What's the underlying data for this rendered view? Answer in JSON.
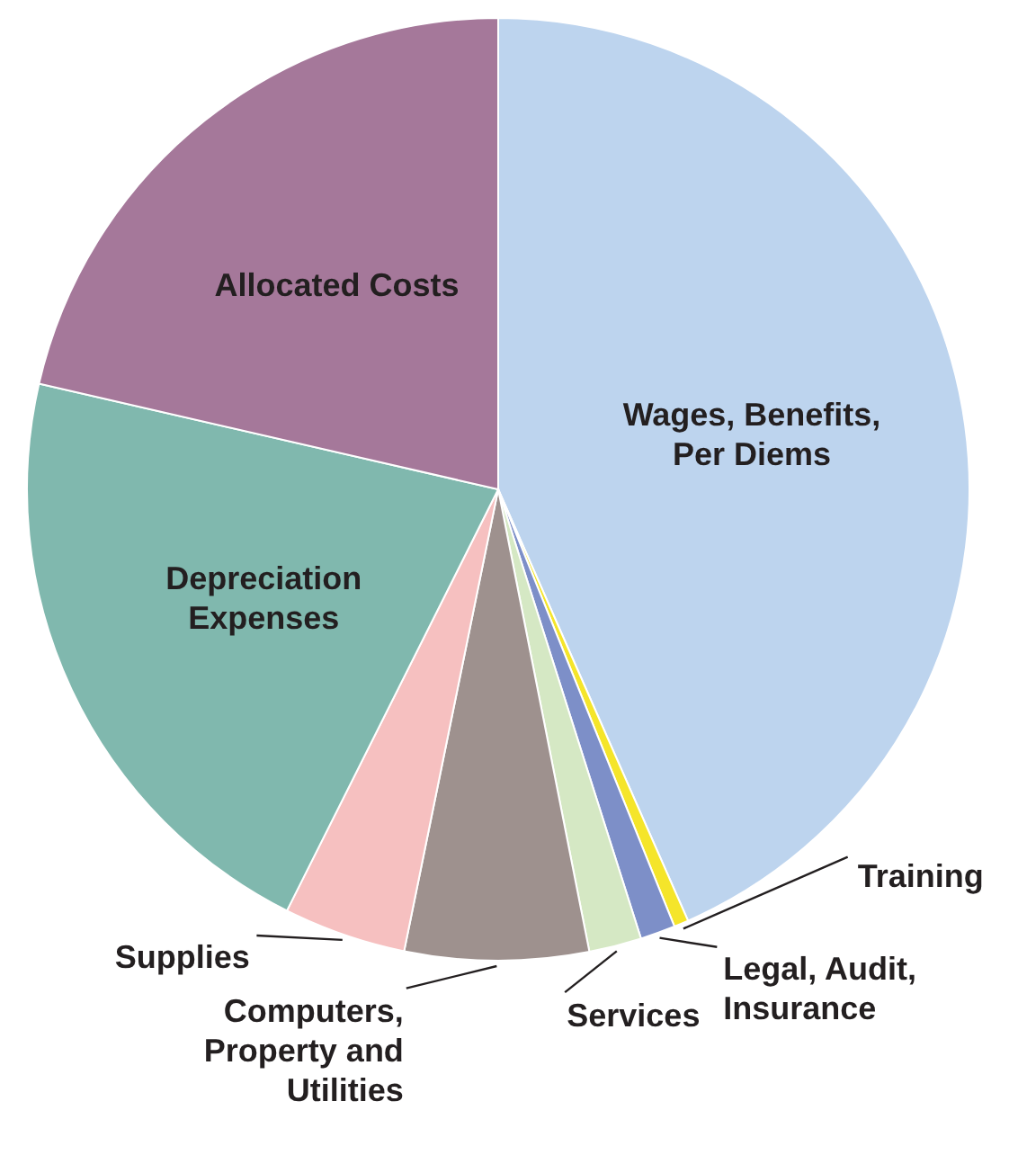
{
  "chart_data": {
    "type": "pie",
    "categories": [
      "Wages, Benefits, Per Diems",
      "Training",
      "Legal, Audit, Insurance",
      "Services",
      "Computers, Property and Utilities",
      "Supplies",
      "Depreciation Expenses",
      "Allocated Costs"
    ],
    "values": [
      43.4,
      0.5,
      1.2,
      1.8,
      6.3,
      4.2,
      21.2,
      21.4
    ],
    "colors": [
      "#bdd4ee",
      "#f5e52a",
      "#7d8fc8",
      "#d5e8c4",
      "#9e918e",
      "#f6c0c0",
      "#80b8ae",
      "#a5789a"
    ]
  }
}
